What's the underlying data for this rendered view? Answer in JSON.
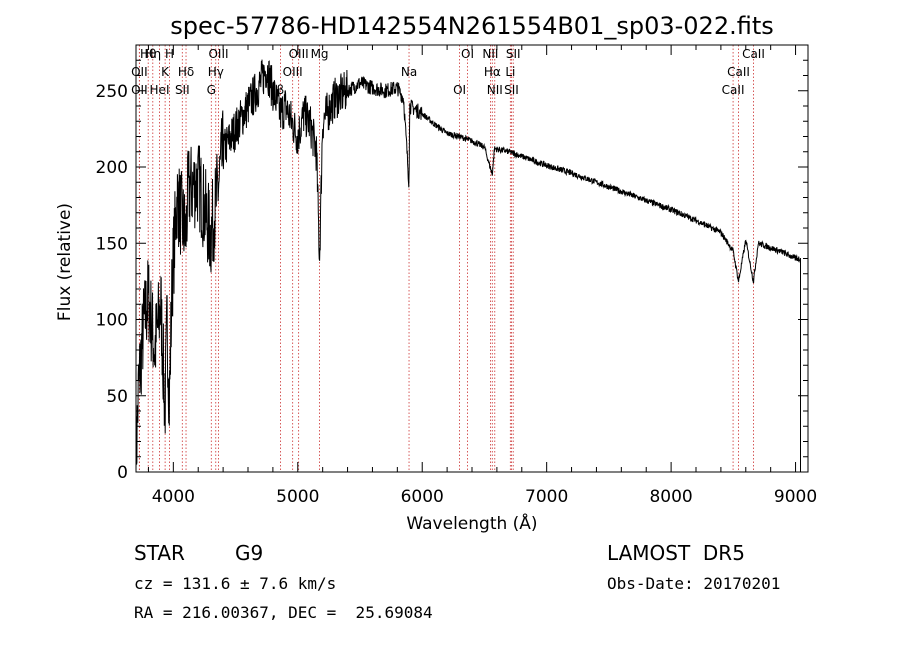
{
  "chart_data": {
    "type": "line",
    "title": "spec-57786-HD142554N261554B01_sp03-022.fits",
    "xlabel": "Wavelength (Å)",
    "ylabel": "Flux (relative)",
    "xlim": [
      3700,
      9100
    ],
    "ylim": [
      0,
      280
    ],
    "xticks": [
      4000,
      5000,
      6000,
      7000,
      8000,
      9000
    ],
    "yticks": [
      0,
      50,
      100,
      150,
      200,
      250
    ],
    "grid": false,
    "spectrum_anchor_points": [
      [
        3700,
        5
      ],
      [
        3720,
        55
      ],
      [
        3760,
        95
      ],
      [
        3800,
        115
      ],
      [
        3850,
        80
      ],
      [
        3900,
        110
      ],
      [
        3933,
        40
      ],
      [
        3950,
        100
      ],
      [
        3968,
        45
      ],
      [
        3990,
        125
      ],
      [
        4030,
        180
      ],
      [
        4101,
        155
      ],
      [
        4120,
        185
      ],
      [
        4200,
        190
      ],
      [
        4300,
        155
      ],
      [
        4340,
        175
      ],
      [
        4400,
        210
      ],
      [
        4500,
        225
      ],
      [
        4600,
        240
      ],
      [
        4700,
        255
      ],
      [
        4750,
        265
      ],
      [
        4800,
        250
      ],
      [
        4861,
        235
      ],
      [
        4900,
        240
      ],
      [
        4950,
        230
      ],
      [
        5000,
        220
      ],
      [
        5050,
        235
      ],
      [
        5100,
        228
      ],
      [
        5150,
        210
      ],
      [
        5175,
        140
      ],
      [
        5200,
        230
      ],
      [
        5300,
        245
      ],
      [
        5400,
        250
      ],
      [
        5500,
        255
      ],
      [
        5600,
        252
      ],
      [
        5700,
        250
      ],
      [
        5800,
        252
      ],
      [
        5850,
        245
      ],
      [
        5893,
        190
      ],
      [
        5900,
        240
      ],
      [
        6000,
        235
      ],
      [
        6100,
        228
      ],
      [
        6200,
        222
      ],
      [
        6300,
        220
      ],
      [
        6400,
        217
      ],
      [
        6500,
        213
      ],
      [
        6563,
        195
      ],
      [
        6580,
        212
      ],
      [
        6700,
        210
      ],
      [
        6800,
        207
      ],
      [
        7000,
        201
      ],
      [
        7200,
        196
      ],
      [
        7500,
        187
      ],
      [
        7800,
        178
      ],
      [
        8000,
        172
      ],
      [
        8200,
        165
      ],
      [
        8400,
        157
      ],
      [
        8498,
        145
      ],
      [
        8542,
        125
      ],
      [
        8600,
        152
      ],
      [
        8662,
        125
      ],
      [
        8700,
        150
      ],
      [
        8800,
        147
      ],
      [
        8900,
        144
      ],
      [
        9000,
        140
      ],
      [
        9040,
        140
      ]
    ],
    "spectral_lines": [
      {
        "label": "Hθ",
        "wavelength": 3798
      },
      {
        "label": "OII",
        "wavelength": 3727
      },
      {
        "label": "OII",
        "wavelength": 3727
      },
      {
        "label": "Hη",
        "wavelength": 3835
      },
      {
        "label": "K",
        "wavelength": 3934
      },
      {
        "label": "HeI",
        "wavelength": 3889
      },
      {
        "label": "H",
        "wavelength": 3969
      },
      {
        "label": "Hδ",
        "wavelength": 4102
      },
      {
        "label": "SII",
        "wavelength": 4072
      },
      {
        "label": "OIII",
        "wavelength": 4363
      },
      {
        "label": "Hγ",
        "wavelength": 4341
      },
      {
        "label": "G",
        "wavelength": 4305
      },
      {
        "label": "OIII",
        "wavelength": 5007
      },
      {
        "label": "OIII",
        "wavelength": 4959
      },
      {
        "label": "β",
        "wavelength": 4861
      },
      {
        "label": "Mg",
        "wavelength": 5175
      },
      {
        "label": "Na",
        "wavelength": 5894
      },
      {
        "label": "OI",
        "wavelength": 6300
      },
      {
        "label": "OI",
        "wavelength": 6364
      },
      {
        "label": "Hα",
        "wavelength": 6563
      },
      {
        "label": "SII",
        "wavelength": 6717
      },
      {
        "label": "NII",
        "wavelength": 6548
      },
      {
        "label": "Li",
        "wavelength": 6708
      },
      {
        "label": "NII",
        "wavelength": 6583
      },
      {
        "label": "SII",
        "wavelength": 6731
      },
      {
        "label": "CaII",
        "wavelength": 8542
      },
      {
        "label": "CaII",
        "wavelength": 8498
      },
      {
        "label": "CaII",
        "wavelength": 8662
      }
    ],
    "line_color": "#000000",
    "marker_color": "#cc3333"
  },
  "info": {
    "object_class": "STAR",
    "subclass": "G9",
    "survey": "LAMOST  DR5",
    "redshift_text": "cz = 131.6 ± 7.6 km/s",
    "obs_date": "Obs-Date: 20170201",
    "coords": "RA = 216.00367, DEC =  25.69084"
  }
}
